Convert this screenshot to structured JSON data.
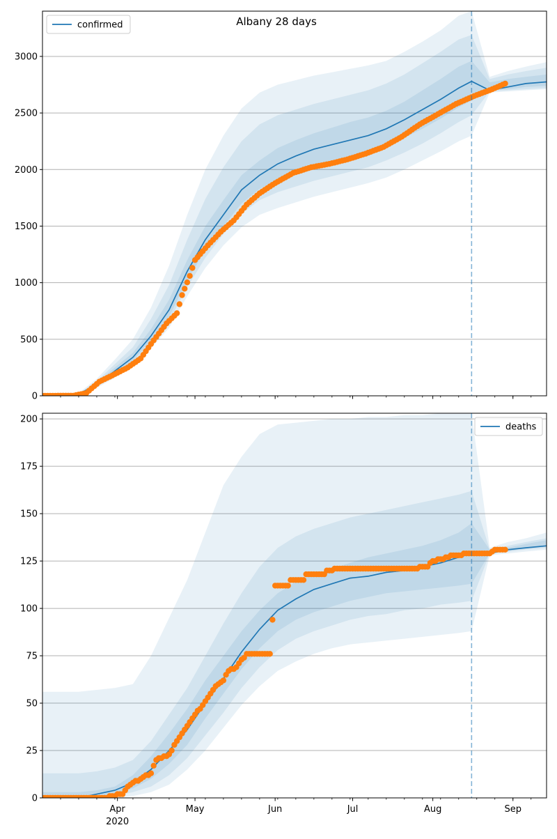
{
  "title": "Albany 28 days",
  "colors": {
    "model": "#1f77b4",
    "observed": "#ff7f0e",
    "band": "#1f77b4",
    "grid": "#b0b0b0",
    "forecast_line": "#1f77b4"
  },
  "x_axis": {
    "range": [
      "2020-03-03",
      "2020-09-14"
    ],
    "tick_labels": [
      {
        "date": "2020-04-01",
        "label": "Apr",
        "sublabel": "2020"
      },
      {
        "date": "2020-05-01",
        "label": "May"
      },
      {
        "date": "2020-06-01",
        "label": "Jun"
      },
      {
        "date": "2020-07-01",
        "label": "Jul"
      },
      {
        "date": "2020-08-01",
        "label": "Aug"
      },
      {
        "date": "2020-09-01",
        "label": "Sep"
      }
    ]
  },
  "chart_data": [
    {
      "type": "line",
      "legend": {
        "label": "confirmed",
        "position": "upper-left"
      },
      "grid": "horizontal",
      "ylim": [
        0,
        3400
      ],
      "yticks": [
        0,
        500,
        1000,
        1500,
        2000,
        2500,
        3000
      ],
      "forecast_start": "2020-08-16",
      "model_median": [
        {
          "date": "2020-03-03",
          "value": 0
        },
        {
          "date": "2020-03-10",
          "value": 2
        },
        {
          "date": "2020-03-17",
          "value": 15
        },
        {
          "date": "2020-03-24",
          "value": 100
        },
        {
          "date": "2020-03-31",
          "value": 220
        },
        {
          "date": "2020-04-07",
          "value": 340
        },
        {
          "date": "2020-04-14",
          "value": 530
        },
        {
          "date": "2020-04-21",
          "value": 760
        },
        {
          "date": "2020-04-28",
          "value": 1100
        },
        {
          "date": "2020-05-05",
          "value": 1380
        },
        {
          "date": "2020-05-12",
          "value": 1600
        },
        {
          "date": "2020-05-19",
          "value": 1820
        },
        {
          "date": "2020-05-26",
          "value": 1950
        },
        {
          "date": "2020-06-02",
          "value": 2050
        },
        {
          "date": "2020-06-09",
          "value": 2120
        },
        {
          "date": "2020-06-16",
          "value": 2180
        },
        {
          "date": "2020-06-23",
          "value": 2220
        },
        {
          "date": "2020-06-30",
          "value": 2260
        },
        {
          "date": "2020-07-07",
          "value": 2300
        },
        {
          "date": "2020-07-14",
          "value": 2360
        },
        {
          "date": "2020-07-21",
          "value": 2440
        },
        {
          "date": "2020-07-28",
          "value": 2530
        },
        {
          "date": "2020-08-04",
          "value": 2620
        },
        {
          "date": "2020-08-11",
          "value": 2720
        },
        {
          "date": "2020-08-16",
          "value": 2780
        },
        {
          "date": "2020-08-23",
          "value": 2700
        },
        {
          "date": "2020-08-30",
          "value": 2730
        },
        {
          "date": "2020-09-06",
          "value": 2760
        },
        {
          "date": "2020-09-14",
          "value": 2775
        }
      ],
      "bands": [
        {
          "lower": [
            0,
            1,
            10,
            70,
            160,
            260,
            420,
            600,
            880,
            1130,
            1330,
            1490,
            1600,
            1660,
            1710,
            1760,
            1800,
            1840,
            1880,
            1930,
            2000,
            2080,
            2160,
            2250,
            2300,
            2680,
            2690,
            2700,
            2710
          ],
          "upper": [
            0,
            4,
            25,
            150,
            320,
            500,
            780,
            1150,
            1600,
            2000,
            2300,
            2540,
            2680,
            2750,
            2790,
            2830,
            2860,
            2890,
            2920,
            2960,
            3040,
            3130,
            3230,
            3360,
            3400,
            2820,
            2870,
            2910,
            2950
          ]
        },
        {
          "lower": [
            0,
            1,
            12,
            80,
            180,
            290,
            460,
            660,
            960,
            1220,
            1430,
            1610,
            1730,
            1800,
            1850,
            1900,
            1940,
            1980,
            2020,
            2080,
            2150,
            2230,
            2320,
            2420,
            2480,
            2690,
            2700,
            2710,
            2720
          ],
          "upper": [
            0,
            3,
            20,
            130,
            280,
            430,
            680,
            980,
            1380,
            1740,
            2020,
            2250,
            2400,
            2480,
            2530,
            2580,
            2620,
            2660,
            2700,
            2760,
            2840,
            2940,
            3040,
            3150,
            3190,
            2800,
            2840,
            2870,
            2900
          ]
        },
        {
          "lower": [
            0,
            1,
            13,
            88,
            195,
            310,
            490,
            700,
            1020,
            1290,
            1500,
            1700,
            1830,
            1910,
            1970,
            2020,
            2060,
            2100,
            2140,
            2200,
            2280,
            2360,
            2450,
            2550,
            2610,
            2700,
            2710,
            2730,
            2740
          ],
          "upper": [
            0,
            3,
            18,
            115,
            250,
            380,
            590,
            850,
            1200,
            1500,
            1730,
            1950,
            2080,
            2190,
            2260,
            2320,
            2370,
            2420,
            2460,
            2520,
            2600,
            2700,
            2800,
            2910,
            2960,
            2770,
            2800,
            2820,
            2840
          ]
        }
      ],
      "observed": [
        {
          "date": "2020-03-03",
          "value": 0
        },
        {
          "date": "2020-03-15",
          "value": 1
        },
        {
          "date": "2020-03-20",
          "value": 25
        },
        {
          "date": "2020-03-25",
          "value": 125
        },
        {
          "date": "2020-03-30",
          "value": 180
        },
        {
          "date": "2020-04-05",
          "value": 250
        },
        {
          "date": "2020-04-10",
          "value": 330
        },
        {
          "date": "2020-04-15",
          "value": 490
        },
        {
          "date": "2020-04-20",
          "value": 640
        },
        {
          "date": "2020-04-24",
          "value": 730
        },
        {
          "date": "2020-04-26",
          "value": 890
        },
        {
          "date": "2020-04-29",
          "value": 1060
        },
        {
          "date": "2020-05-01",
          "value": 1200
        },
        {
          "date": "2020-05-06",
          "value": 1330
        },
        {
          "date": "2020-05-11",
          "value": 1450
        },
        {
          "date": "2020-05-16",
          "value": 1550
        },
        {
          "date": "2020-05-21",
          "value": 1690
        },
        {
          "date": "2020-05-26",
          "value": 1790
        },
        {
          "date": "2020-06-01",
          "value": 1880
        },
        {
          "date": "2020-06-08",
          "value": 1970
        },
        {
          "date": "2020-06-15",
          "value": 2020
        },
        {
          "date": "2020-06-22",
          "value": 2050
        },
        {
          "date": "2020-06-29",
          "value": 2090
        },
        {
          "date": "2020-07-06",
          "value": 2140
        },
        {
          "date": "2020-07-13",
          "value": 2200
        },
        {
          "date": "2020-07-20",
          "value": 2290
        },
        {
          "date": "2020-07-27",
          "value": 2400
        },
        {
          "date": "2020-08-03",
          "value": 2490
        },
        {
          "date": "2020-08-10",
          "value": 2580
        },
        {
          "date": "2020-08-17",
          "value": 2650
        },
        {
          "date": "2020-08-24",
          "value": 2710
        },
        {
          "date": "2020-08-29",
          "value": 2760
        }
      ]
    },
    {
      "type": "line",
      "legend": {
        "label": "deaths",
        "position": "upper-right"
      },
      "grid": "horizontal",
      "ylim": [
        0,
        203
      ],
      "yticks": [
        0,
        25,
        50,
        75,
        100,
        125,
        150,
        175,
        200
      ],
      "forecast_start": "2020-08-16",
      "model_median": [
        {
          "date": "2020-03-03",
          "value": 0
        },
        {
          "date": "2020-03-17",
          "value": 0
        },
        {
          "date": "2020-03-24",
          "value": 2
        },
        {
          "date": "2020-03-31",
          "value": 4
        },
        {
          "date": "2020-04-07",
          "value": 8
        },
        {
          "date": "2020-04-14",
          "value": 15
        },
        {
          "date": "2020-04-21",
          "value": 25
        },
        {
          "date": "2020-04-28",
          "value": 36
        },
        {
          "date": "2020-05-05",
          "value": 50
        },
        {
          "date": "2020-05-12",
          "value": 63
        },
        {
          "date": "2020-05-19",
          "value": 77
        },
        {
          "date": "2020-05-26",
          "value": 89
        },
        {
          "date": "2020-06-02",
          "value": 99
        },
        {
          "date": "2020-06-09",
          "value": 105
        },
        {
          "date": "2020-06-16",
          "value": 110
        },
        {
          "date": "2020-06-23",
          "value": 113
        },
        {
          "date": "2020-06-30",
          "value": 116
        },
        {
          "date": "2020-07-07",
          "value": 117
        },
        {
          "date": "2020-07-14",
          "value": 119
        },
        {
          "date": "2020-07-21",
          "value": 120
        },
        {
          "date": "2020-07-28",
          "value": 122
        },
        {
          "date": "2020-08-04",
          "value": 124
        },
        {
          "date": "2020-08-11",
          "value": 127
        },
        {
          "date": "2020-08-16",
          "value": 129
        },
        {
          "date": "2020-08-23",
          "value": 129
        },
        {
          "date": "2020-08-30",
          "value": 131
        },
        {
          "date": "2020-09-06",
          "value": 132
        },
        {
          "date": "2020-09-14",
          "value": 133
        }
      ],
      "bands": [
        {
          "lower": [
            0,
            0,
            0,
            0,
            1,
            3,
            7,
            15,
            25,
            37,
            49,
            59,
            67,
            72,
            76,
            79,
            81,
            82,
            83,
            84,
            85,
            86,
            87,
            88,
            128,
            129,
            130,
            131
          ],
          "upper": [
            56,
            56,
            57,
            58,
            60,
            75,
            95,
            115,
            140,
            165,
            180,
            192,
            197,
            198,
            199,
            200,
            200,
            201,
            201,
            202,
            202,
            203,
            203,
            203,
            132,
            135,
            137,
            140
          ]
        },
        {
          "lower": [
            0,
            0,
            0,
            1,
            3,
            6,
            12,
            21,
            33,
            45,
            58,
            69,
            78,
            84,
            88,
            91,
            94,
            96,
            97,
            99,
            100,
            102,
            103,
            104,
            129,
            130,
            131,
            132
          ],
          "upper": [
            13,
            13,
            14,
            16,
            20,
            30,
            44,
            58,
            75,
            92,
            108,
            122,
            132,
            138,
            142,
            145,
            148,
            150,
            152,
            154,
            156,
            158,
            160,
            162,
            131,
            133,
            135,
            137
          ]
        },
        {
          "lower": [
            0,
            0,
            0,
            2,
            5,
            10,
            18,
            28,
            42,
            55,
            68,
            79,
            88,
            94,
            98,
            101,
            104,
            106,
            108,
            109,
            110,
            111,
            112,
            113,
            129,
            130,
            132,
            133
          ],
          "upper": [
            3,
            3,
            4,
            6,
            12,
            22,
            34,
            47,
            62,
            75,
            88,
            99,
            108,
            114,
            118,
            121,
            124,
            127,
            129,
            131,
            133,
            136,
            140,
            145,
            131,
            132,
            134,
            136
          ]
        }
      ],
      "observed": [
        {
          "date": "2020-03-03",
          "value": 0
        },
        {
          "date": "2020-03-28",
          "value": 0
        },
        {
          "date": "2020-03-30",
          "value": 1
        },
        {
          "date": "2020-04-03",
          "value": 2
        },
        {
          "date": "2020-04-05",
          "value": 6
        },
        {
          "date": "2020-04-07",
          "value": 8
        },
        {
          "date": "2020-04-10",
          "value": 10
        },
        {
          "date": "2020-04-14",
          "value": 13
        },
        {
          "date": "2020-04-16",
          "value": 20
        },
        {
          "date": "2020-04-21",
          "value": 23
        },
        {
          "date": "2020-04-24",
          "value": 30
        },
        {
          "date": "2020-04-27",
          "value": 36
        },
        {
          "date": "2020-05-01",
          "value": 44
        },
        {
          "date": "2020-05-04",
          "value": 49
        },
        {
          "date": "2020-05-06",
          "value": 53
        },
        {
          "date": "2020-05-09",
          "value": 59
        },
        {
          "date": "2020-05-12",
          "value": 62
        },
        {
          "date": "2020-05-14",
          "value": 67
        },
        {
          "date": "2020-05-17",
          "value": 69
        },
        {
          "date": "2020-05-21",
          "value": 76
        },
        {
          "date": "2020-05-30",
          "value": 76
        },
        {
          "date": "2020-06-01",
          "value": 112
        },
        {
          "date": "2020-06-06",
          "value": 112
        },
        {
          "date": "2020-06-07",
          "value": 115
        },
        {
          "date": "2020-06-12",
          "value": 115
        },
        {
          "date": "2020-06-13",
          "value": 118
        },
        {
          "date": "2020-06-20",
          "value": 118
        },
        {
          "date": "2020-06-21",
          "value": 120
        },
        {
          "date": "2020-06-26",
          "value": 121
        },
        {
          "date": "2020-07-23",
          "value": 121
        },
        {
          "date": "2020-07-30",
          "value": 122
        },
        {
          "date": "2020-07-31",
          "value": 124
        },
        {
          "date": "2020-08-04",
          "value": 126
        },
        {
          "date": "2020-08-09",
          "value": 128
        },
        {
          "date": "2020-08-16",
          "value": 129
        },
        {
          "date": "2020-08-23",
          "value": 129
        },
        {
          "date": "2020-08-25",
          "value": 131
        },
        {
          "date": "2020-08-29",
          "value": 131
        }
      ]
    }
  ]
}
